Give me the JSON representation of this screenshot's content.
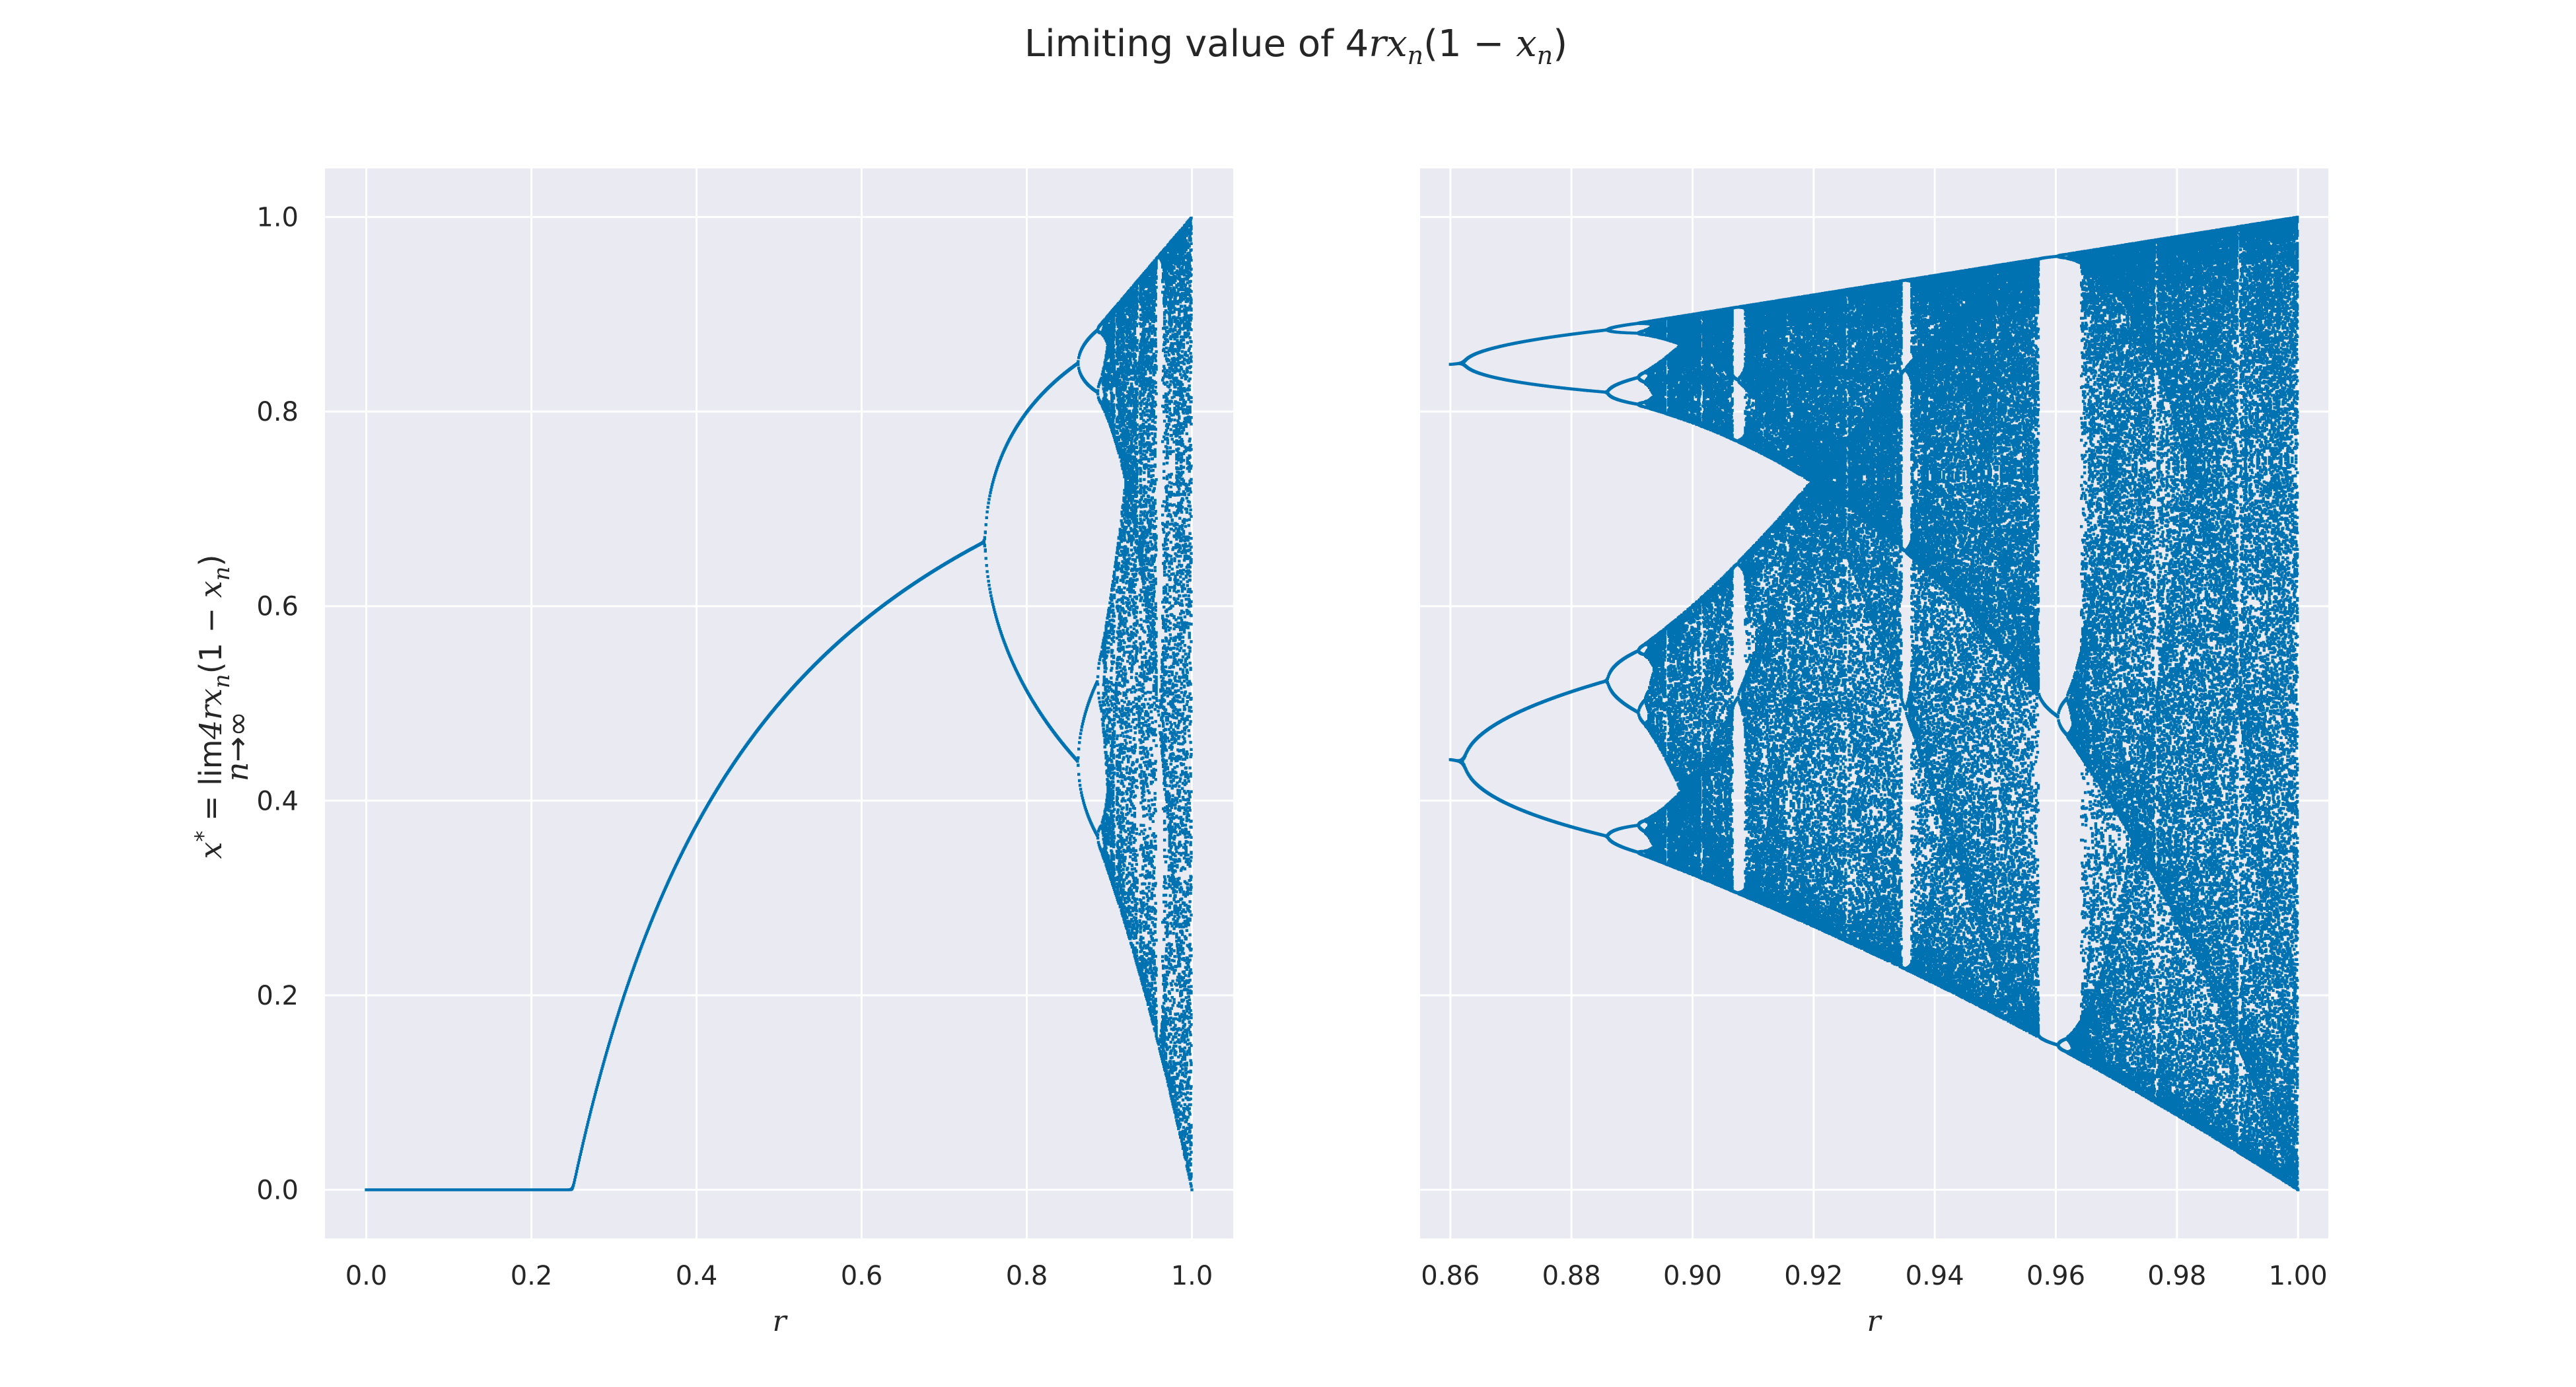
{
  "title": "Limiting value of 4rx_n(1 − x_n)",
  "colors": {
    "series": "#0072b2",
    "plot_background": "#eaeaf2",
    "grid": "#ffffff",
    "text": "#262626"
  },
  "chart_data": [
    {
      "type": "scatter",
      "name": "bifurcation-full",
      "xlabel": "r",
      "ylabel": "x* = lim_{n→∞} 4rx_n(1 − x_n)",
      "xlim": [
        -0.05,
        1.05
      ],
      "ylim": [
        -0.05,
        1.05
      ],
      "xticks": [
        0.0,
        0.2,
        0.4,
        0.6,
        0.8,
        1.0
      ],
      "xtick_labels": [
        "0.0",
        "0.2",
        "0.4",
        "0.6",
        "0.8",
        "1.0"
      ],
      "yticks": [
        0.0,
        0.2,
        0.4,
        0.6,
        0.8,
        1.0
      ],
      "ytick_labels": [
        "0.0",
        "0.2",
        "0.4",
        "0.6",
        "0.8",
        "1.0"
      ],
      "r_range": [
        0.0,
        1.0
      ],
      "grid": true
    },
    {
      "type": "scatter",
      "name": "bifurcation-zoom",
      "xlabel": "r",
      "xlim": [
        0.855,
        1.005
      ],
      "ylim": [
        -0.05,
        1.05
      ],
      "xticks": [
        0.86,
        0.88,
        0.9,
        0.92,
        0.94,
        0.96,
        0.98,
        1.0
      ],
      "xtick_labels": [
        "0.86",
        "0.88",
        "0.90",
        "0.92",
        "0.94",
        "0.96",
        "0.98",
        "1.00"
      ],
      "yticks": [
        0.0,
        0.2,
        0.4,
        0.6,
        0.8,
        1.0
      ],
      "r_range": [
        0.86,
        1.0
      ],
      "grid": true
    }
  ]
}
